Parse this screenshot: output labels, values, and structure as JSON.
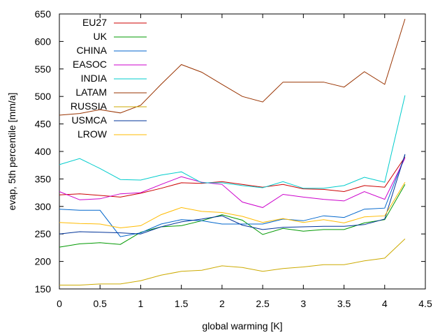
{
  "chart_data": {
    "type": "line",
    "xlabel": "global warming [K]",
    "ylabel": "evap, 5th percentile [mm/a]",
    "xlim": [
      0,
      4.5
    ],
    "ylim": [
      150,
      650
    ],
    "xticks": [
      "0",
      "0.5",
      "1",
      "1.5",
      "2",
      "2.5",
      "3",
      "3.5",
      "4",
      "4.5"
    ],
    "yticks": [
      "150",
      "200",
      "250",
      "300",
      "350",
      "400",
      "450",
      "500",
      "550",
      "600",
      "650"
    ],
    "grid": false,
    "legend_position": "top-left",
    "x": [
      0,
      0.25,
      0.5,
      0.75,
      1,
      1.25,
      1.5,
      1.75,
      2,
      2.25,
      2.5,
      2.75,
      3,
      3.25,
      3.5,
      3.75,
      4,
      4.25
    ],
    "series": [
      {
        "name": "EU27",
        "color": "#cc0000",
        "values": [
          321,
          323,
          320,
          317,
          324,
          333,
          343,
          342,
          345,
          340,
          335,
          340,
          332,
          331,
          327,
          338,
          335,
          390
        ]
      },
      {
        "name": "UK",
        "color": "#009900",
        "values": [
          226,
          232,
          234,
          231,
          253,
          263,
          265,
          274,
          285,
          275,
          249,
          260,
          255,
          258,
          258,
          270,
          276,
          340
        ]
      },
      {
        "name": "CHINA",
        "color": "#0066cc",
        "values": [
          295,
          293,
          293,
          245,
          252,
          268,
          276,
          274,
          268,
          268,
          268,
          277,
          274,
          283,
          280,
          295,
          297,
          393
        ]
      },
      {
        "name": "EASOC",
        "color": "#cc00cc",
        "values": [
          327,
          312,
          314,
          323,
          325,
          340,
          354,
          344,
          340,
          308,
          298,
          322,
          317,
          313,
          310,
          327,
          313,
          388
        ]
      },
      {
        "name": "INDIA",
        "color": "#00cccc",
        "values": [
          376,
          387,
          369,
          349,
          348,
          357,
          363,
          343,
          343,
          338,
          334,
          345,
          333,
          333,
          338,
          353,
          344,
          502
        ]
      },
      {
        "name": "LATAM",
        "color": "#993300",
        "values": [
          466,
          469,
          476,
          470,
          484,
          522,
          558,
          544,
          522,
          500,
          490,
          526,
          526,
          526,
          517,
          545,
          522,
          641
        ]
      },
      {
        "name": "RUSSIA",
        "color": "#ccaa00",
        "values": [
          157,
          157,
          159,
          159,
          165,
          175,
          182,
          184,
          192,
          189,
          182,
          187,
          190,
          194,
          194,
          201,
          206,
          241
        ]
      },
      {
        "name": "USMCA",
        "color": "#003399",
        "values": [
          250,
          254,
          253,
          252,
          250,
          263,
          272,
          277,
          283,
          266,
          258,
          262,
          263,
          264,
          264,
          267,
          277,
          395
        ]
      },
      {
        "name": "LROW",
        "color": "#ffbb00",
        "values": [
          271,
          269,
          268,
          261,
          265,
          285,
          298,
          291,
          289,
          282,
          271,
          278,
          271,
          276,
          270,
          281,
          283,
          344
        ]
      }
    ]
  }
}
